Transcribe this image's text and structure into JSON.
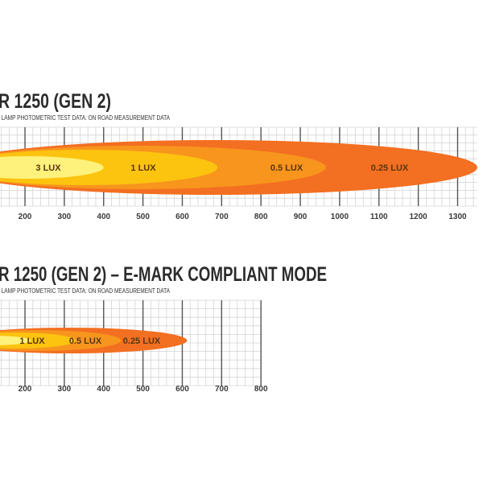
{
  "chart_data": [
    {
      "type": "area",
      "title": "R 1250 (GEN 2)",
      "subtitle": "I LAMP PHOTOMETRIC TEST DATA: ON ROAD MEASUREMENT DATA",
      "xlim": [
        135,
        1350
      ],
      "x_ticks": [
        "200",
        "300",
        "400",
        "500",
        "600",
        "700",
        "800",
        "900",
        "1000",
        "1100",
        "1200",
        "1300"
      ],
      "grid": true,
      "zones": [
        {
          "label": "0.25 LUX",
          "reach": 1350,
          "color": "#f36f21"
        },
        {
          "label": "0.5 LUX",
          "reach": 965,
          "color": "#f7951d"
        },
        {
          "label": "1 LUX",
          "reach": 690,
          "color": "#fcc30f"
        },
        {
          "label": "3 LUX",
          "reach": 400,
          "color": "#fff27c"
        }
      ]
    },
    {
      "type": "area",
      "title": "R 1250 (GEN 2) – E-MARK COMPLIANT MODE",
      "subtitle": "I LAMP PHOTOMETRIC TEST DATA: ON ROAD MEASUREMENT DATA",
      "xlim": [
        135,
        800
      ],
      "x_ticks": [
        "200",
        "300",
        "400",
        "500",
        "600",
        "700",
        "800"
      ],
      "grid": true,
      "zones": [
        {
          "label": "0.25 LUX",
          "reach": 612,
          "color": "#f36f21"
        },
        {
          "label": "0.5 LUX",
          "reach": 445,
          "color": "#f7951d"
        },
        {
          "label": "1 LUX",
          "reach": 330,
          "color": "#fcc30f"
        },
        {
          "label": "",
          "reach": 215,
          "color": "#fff27c"
        }
      ]
    }
  ]
}
